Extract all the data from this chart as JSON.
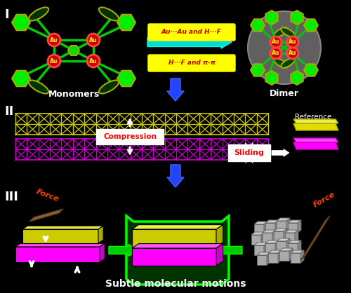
{
  "bg_color": "#000000",
  "title_text": "Subtle molecular motions",
  "label_I": "I",
  "label_II": "II",
  "label_III": "III",
  "label_monomers": "Monomers",
  "label_dimer": "Dimer",
  "label_reference": "Reference",
  "label_compression": "Compression",
  "label_sliding": "Sliding",
  "label_force1": "Force",
  "label_force2": "Force",
  "arrow_label1": "Au···Au and H···F",
  "arrow_label2": "H···F and π-π",
  "yellow_color": "#dddd00",
  "magenta_color": "#ff00ff",
  "green_color": "#00ff00",
  "tan_color": "#a07840"
}
